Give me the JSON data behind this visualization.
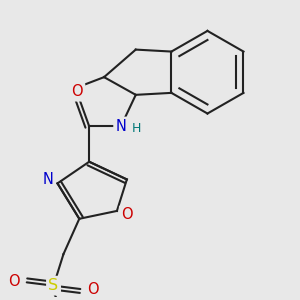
{
  "bg": "#e8e8e8",
  "bc": "#222222",
  "lw": 1.5,
  "atom_colors": {
    "N": "#0000cc",
    "O": "#cc0000",
    "S": "#cccc00",
    "H": "#007777"
  },
  "fs": 9.5
}
